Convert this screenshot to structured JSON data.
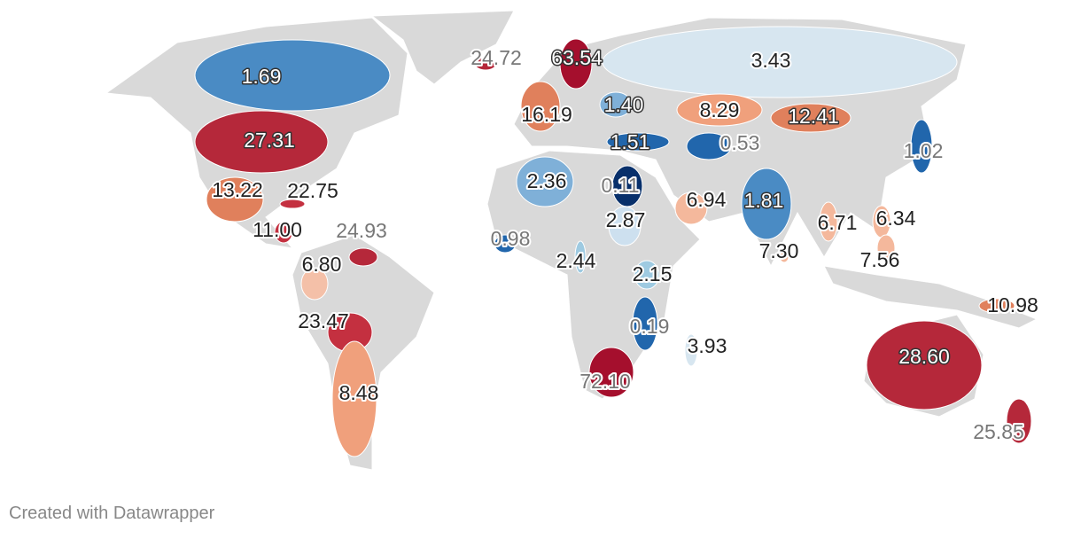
{
  "map": {
    "values": [
      24.72,
      63.54,
      3.43,
      1.69,
      16.19,
      1.4,
      8.29,
      12.41,
      27.31,
      1.51,
      0.53,
      1.02,
      2.36,
      0.11,
      13.22,
      22.75,
      6.94,
      1.81,
      2.87,
      6.71,
      6.34,
      11.0,
      24.93,
      0.98,
      7.3,
      6.8,
      2.44,
      7.56,
      2.15,
      10.98,
      23.47,
      0.19,
      3.93,
      28.6,
      8.48,
      72.1,
      25.85
    ],
    "value_labels": [
      "24.72",
      "63.54",
      "3.43",
      "1.69",
      "16.19",
      "1.40",
      "8.29",
      "12.41",
      "27.31",
      "1.51",
      "0.53",
      "1.02",
      "2.36",
      "0.11",
      "13.22",
      "22.75",
      "6.94",
      "1.81",
      "2.87",
      "6.71",
      "6.34",
      "11.00",
      "24.93",
      "0.98",
      "7.30",
      "6.80",
      "2.44",
      "7.56",
      "2.15",
      "10.98",
      "23.47",
      "0.19",
      "3.93",
      "28.60",
      "8.48",
      "72.10",
      "25.85"
    ],
    "colors": [
      "#b5283a",
      "#a50f2d",
      "#d7e6f0",
      "#4a8bc4",
      "#e0805c",
      "#7fb0d8",
      "#f0a07c",
      "#e0805c",
      "#b5283a",
      "#2166ac",
      "#2166ac",
      "#2166ac",
      "#7fb0d8",
      "#08306b",
      "#e0805c",
      "#c43040",
      "#f4b89c",
      "#4a8bc4",
      "#cde0ef",
      "#f4b89c",
      "#f4b89c",
      "#c43040",
      "#b5283a",
      "#2166ac",
      "#f4b89c",
      "#f4c0a8",
      "#9ecae1",
      "#f4b89c",
      "#9ecae1",
      "#e0805c",
      "#c43040",
      "#2166ac",
      "#d7e6f0",
      "#b5283a",
      "#f0a07c",
      "#a50f2d",
      "#b5283a"
    ]
  },
  "footer": "Created with Datawrapper"
}
